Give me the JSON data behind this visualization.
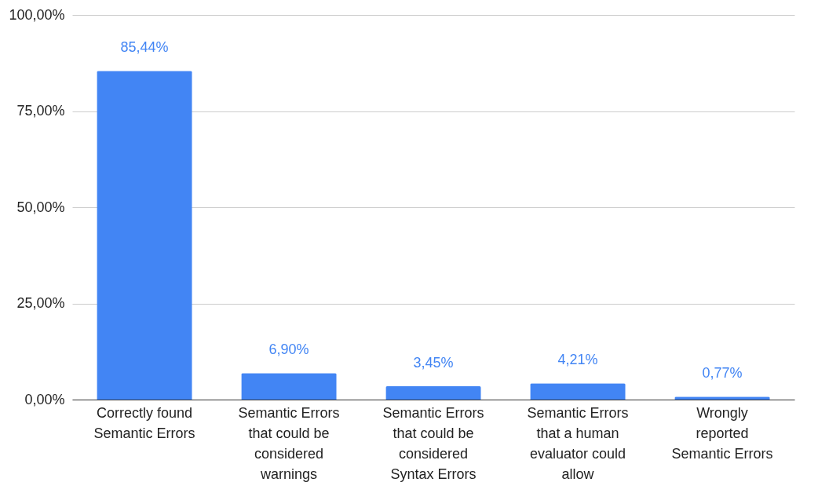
{
  "chart_data": {
    "type": "bar",
    "categories": [
      "Correctly found Semantic Errors",
      "Semantic Errors that could be considered warnings",
      "Semantic Errors that could be considered Syntax Errors",
      "Semantic Errors that a human evaluator could allow",
      "Wrongly reported Semantic Errors"
    ],
    "values": [
      85.44,
      6.9,
      3.45,
      4.21,
      0.77
    ],
    "value_labels": [
      "85,44%",
      "6,90%",
      "3,45%",
      "4,21%",
      "0,77%"
    ],
    "color": "#4285f4",
    "ylim": [
      0,
      100
    ],
    "yticks": [
      {
        "value": 0,
        "label": "0,00%"
      },
      {
        "value": 25,
        "label": "25,00%"
      },
      {
        "value": 50,
        "label": "50,00%"
      },
      {
        "value": 75,
        "label": "75,00%"
      },
      {
        "value": 100,
        "label": "100,00%"
      }
    ],
    "grid": "y"
  }
}
